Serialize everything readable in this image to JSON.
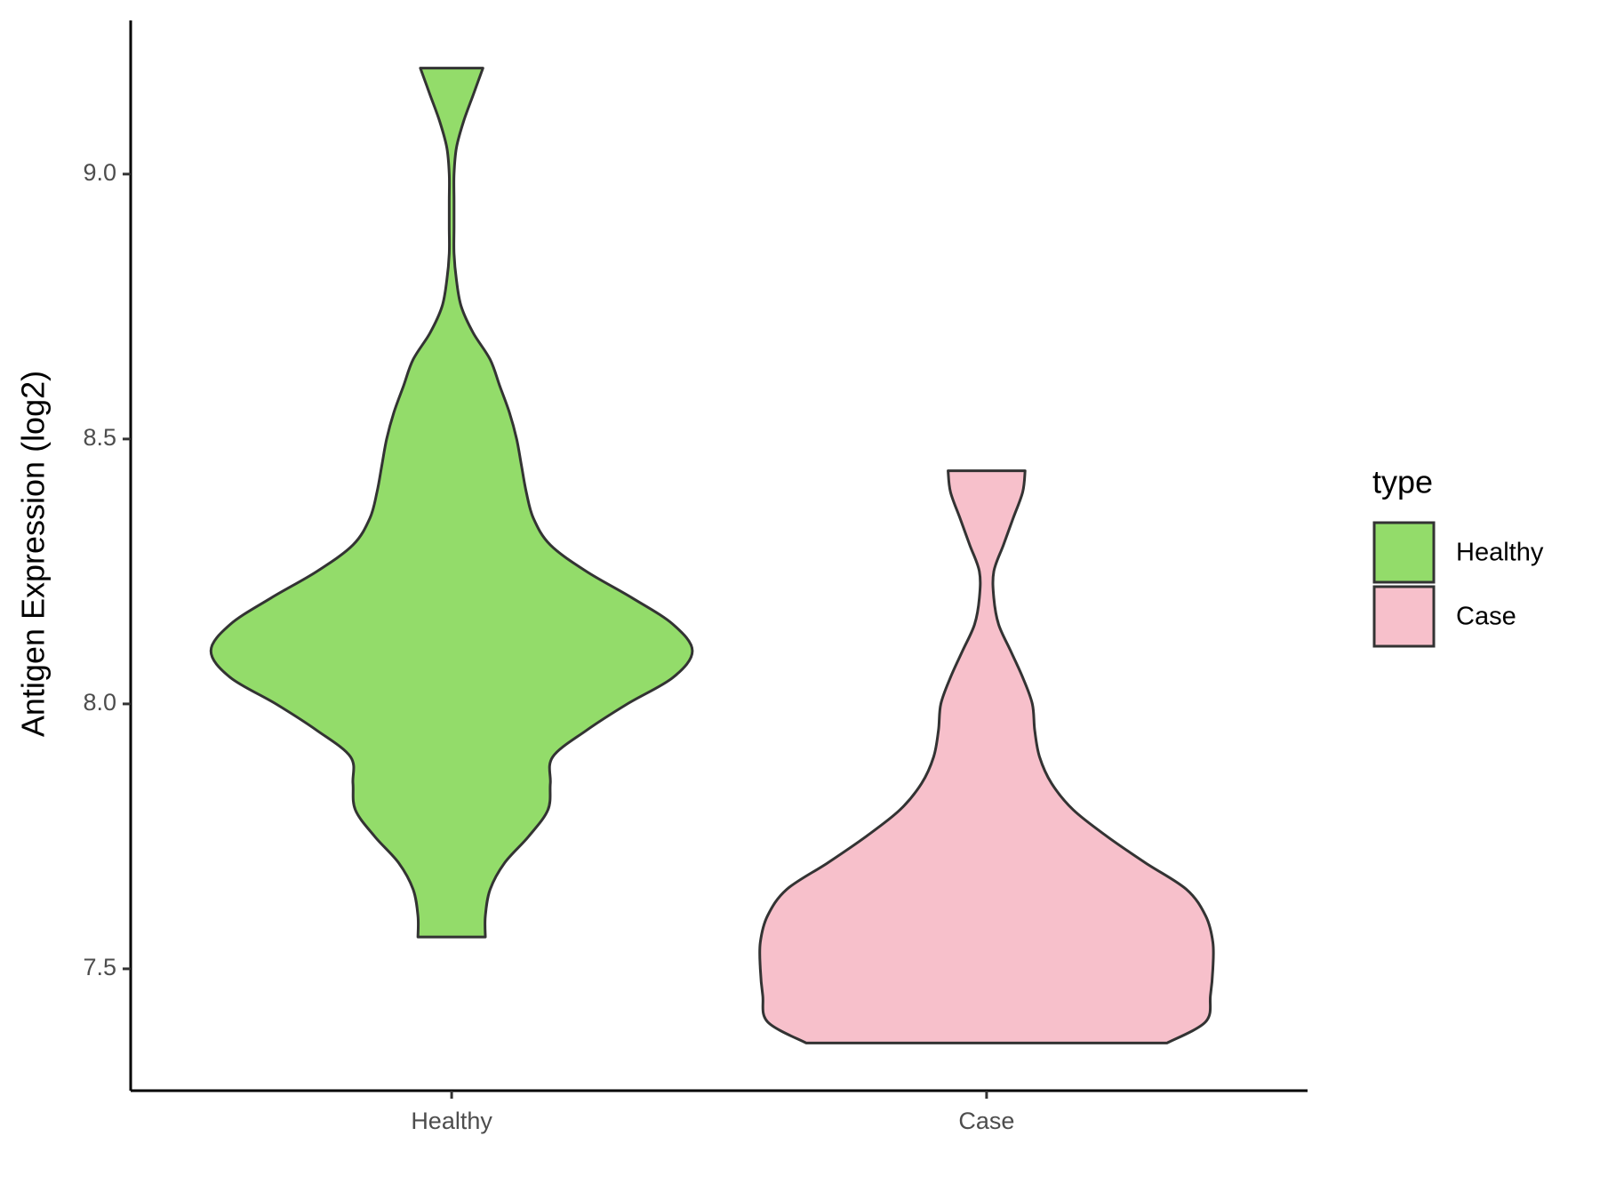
{
  "chart_data": {
    "type": "violin",
    "y_label": "Antigen Expression (log2)",
    "categories": [
      "Healthy",
      "Case"
    ],
    "ylim": [
      7.27,
      9.29
    ],
    "yticks": [
      {
        "value": 7.5,
        "label": "7.5"
      },
      {
        "value": 8,
        "label": "8.0"
      },
      {
        "value": 8.5,
        "label": "8.5"
      },
      {
        "value": 9,
        "label": "9.0"
      }
    ],
    "legend_title": "type",
    "outline_color": "#333333",
    "series": [
      {
        "name": "Healthy",
        "color": "#93dc6a",
        "y": [
          7.56,
          7.6,
          7.65,
          7.7,
          7.75,
          7.8,
          7.85,
          7.9,
          7.95,
          8.0,
          8.05,
          8.1,
          8.15,
          8.2,
          8.25,
          8.3,
          8.35,
          8.4,
          8.45,
          8.5,
          8.55,
          8.6,
          8.65,
          8.7,
          8.75,
          8.8,
          8.85,
          8.9,
          8.95,
          9.0,
          9.05,
          9.1,
          9.15,
          9.2
        ],
        "widths": [
          0.14,
          0.14,
          0.16,
          0.22,
          0.32,
          0.4,
          0.41,
          0.42,
          0.56,
          0.73,
          0.92,
          1,
          0.92,
          0.75,
          0.56,
          0.41,
          0.34,
          0.31,
          0.29,
          0.27,
          0.24,
          0.2,
          0.16,
          0.09,
          0.04,
          0.02,
          0.01,
          0.01,
          0.01,
          0.01,
          0.02,
          0.05,
          0.09,
          0.13
        ]
      },
      {
        "name": "Case",
        "color": "#f7c0cb",
        "y": [
          7.36,
          7.4,
          7.45,
          7.5,
          7.55,
          7.6,
          7.65,
          7.7,
          7.75,
          7.8,
          7.85,
          7.9,
          7.95,
          8.0,
          8.05,
          8.1,
          8.15,
          8.2,
          8.25,
          8.3,
          8.35,
          8.4,
          8.44
        ],
        "widths": [
          0.75,
          0.91,
          0.93,
          0.94,
          0.94,
          0.91,
          0.83,
          0.66,
          0.5,
          0.36,
          0.27,
          0.22,
          0.2,
          0.19,
          0.15,
          0.1,
          0.05,
          0.03,
          0.03,
          0.07,
          0.11,
          0.15,
          0.16
        ]
      }
    ]
  }
}
